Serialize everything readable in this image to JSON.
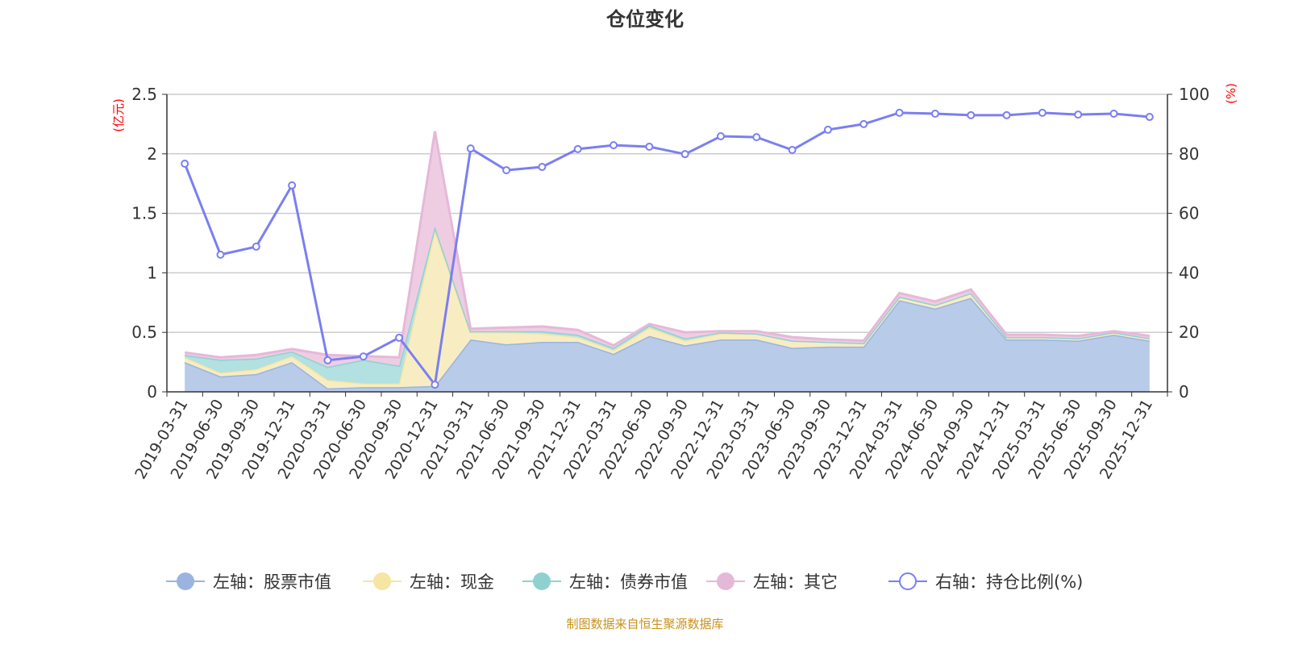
{
  "chart_data": {
    "type": "area",
    "title": "仓位变化",
    "left_axis_unit": "(亿元)",
    "right_axis_unit": "(%)",
    "ylim_left": [
      0,
      2.5
    ],
    "yticks_left": [
      "0",
      "0.5",
      "1",
      "1.5",
      "2",
      "2.5"
    ],
    "ylim_right": [
      0,
      100
    ],
    "yticks_right": [
      "0",
      "20",
      "40",
      "60",
      "80",
      "100"
    ],
    "grid": true,
    "legend_position": "bottom",
    "categories": [
      "2019-03-31",
      "2019-06-30",
      "2019-09-30",
      "2019-12-31",
      "2020-03-31",
      "2020-06-30",
      "2020-09-30",
      "2020-12-31",
      "2021-03-31",
      "2021-06-30",
      "2021-09-30",
      "2021-12-31",
      "2022-03-31",
      "2022-06-30",
      "2022-09-30",
      "2022-12-31",
      "2023-03-31",
      "2023-06-30",
      "2023-09-30",
      "2023-12-31",
      "2024-03-31",
      "2024-06-30",
      "2024-09-30",
      "2024-12-31",
      "2025-03-31",
      "2025-06-30",
      "2025-09-30",
      "2025-12-31"
    ],
    "series": [
      {
        "name": "左轴：股票市值",
        "axis": "left",
        "stacked": true,
        "color": "#9ab4e0",
        "fill": "#b8cbe9",
        "values": [
          0.25,
          0.13,
          0.15,
          0.25,
          0.03,
          0.04,
          0.04,
          0.05,
          0.44,
          0.4,
          0.42,
          0.42,
          0.32,
          0.47,
          0.39,
          0.44,
          0.44,
          0.37,
          0.38,
          0.38,
          0.77,
          0.7,
          0.79,
          0.44,
          0.44,
          0.43,
          0.48,
          0.43
        ]
      },
      {
        "name": "左轴：现金",
        "axis": "left",
        "stacked": true,
        "color": "#f5e6a3",
        "fill": "#f8edc2",
        "values": [
          0.04,
          0.03,
          0.04,
          0.05,
          0.07,
          0.03,
          0.03,
          1.31,
          0.06,
          0.1,
          0.07,
          0.04,
          0.03,
          0.07,
          0.04,
          0.05,
          0.05,
          0.06,
          0.04,
          0.03,
          0.03,
          0.03,
          0.04,
          0.02,
          0.02,
          0.02,
          0.02,
          0.02
        ]
      },
      {
        "name": "左轴：债券市值",
        "axis": "left",
        "stacked": true,
        "color": "#8fd1d1",
        "fill": "#b3e0e0",
        "values": [
          0.02,
          0.11,
          0.09,
          0.04,
          0.11,
          0.2,
          0.15,
          0.03,
          0.01,
          0.01,
          0.02,
          0.02,
          0.02,
          0.02,
          0.02,
          0.01,
          0,
          0,
          0,
          0,
          0,
          0,
          0,
          0,
          0,
          0,
          0,
          0
        ]
      },
      {
        "name": "左轴：其它",
        "axis": "left",
        "stacked": true,
        "color": "#e6b8d8",
        "fill": "#eecde3",
        "values": [
          0.02,
          0.02,
          0.03,
          0.02,
          0.1,
          0.03,
          0.07,
          0.8,
          0.02,
          0.03,
          0.04,
          0.04,
          0.02,
          0.01,
          0.05,
          0.01,
          0.02,
          0.03,
          0.02,
          0.02,
          0.03,
          0.03,
          0.03,
          0.02,
          0.02,
          0.02,
          0.01,
          0.02
        ]
      },
      {
        "name": "右轴：持仓比例(%)",
        "axis": "right",
        "type": "line",
        "color": "#7b7ff0",
        "values": [
          76.7,
          46.1,
          48.8,
          69.4,
          10.6,
          11.9,
          18.2,
          2.4,
          81.8,
          74.5,
          75.6,
          81.6,
          82.9,
          82.4,
          79.9,
          85.9,
          85.6,
          81.3,
          88.1,
          90.0,
          93.8,
          93.5,
          93.0,
          93.0,
          93.8,
          93.2,
          93.5,
          92.4
        ]
      }
    ]
  },
  "footer": "制图数据来自恒生聚源数据库"
}
